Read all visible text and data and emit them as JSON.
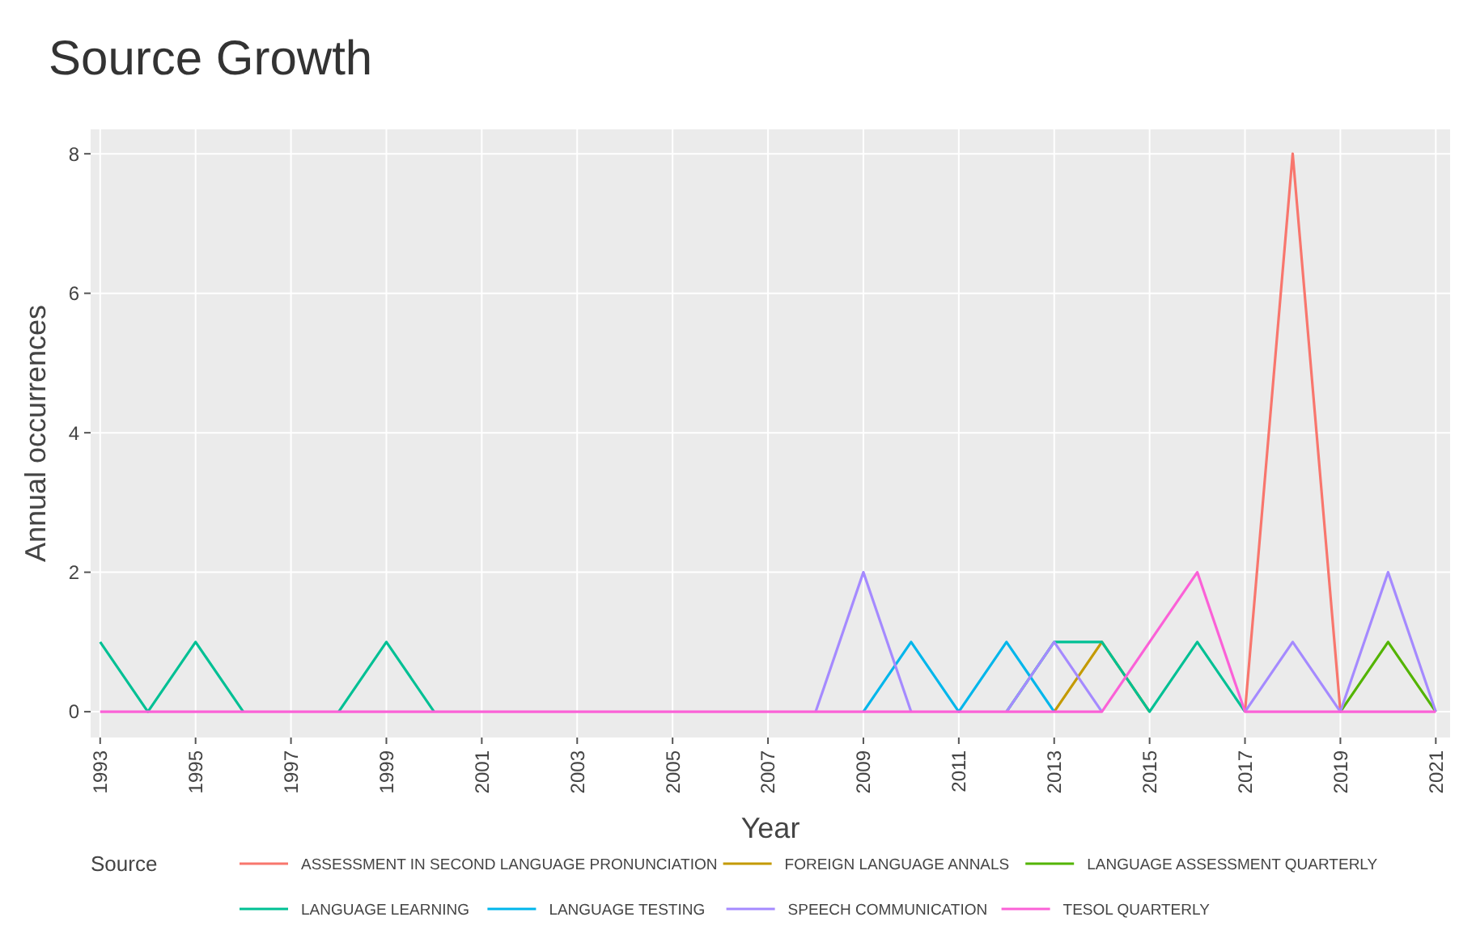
{
  "chart_data": {
    "type": "line",
    "title": "Source Growth",
    "xlabel": "Year",
    "ylabel": "Annual occurrences",
    "legend_title": "Source",
    "legend": "bottom",
    "grid": true,
    "x": [
      1993,
      1994,
      1995,
      1996,
      1997,
      1998,
      1999,
      2000,
      2001,
      2002,
      2003,
      2004,
      2005,
      2006,
      2007,
      2008,
      2009,
      2010,
      2011,
      2012,
      2013,
      2014,
      2015,
      2016,
      2017,
      2018,
      2019,
      2020,
      2021
    ],
    "xlim": [
      1992.8,
      2021.3
    ],
    "xticks": [
      {
        "value": 1993,
        "label": "1993"
      },
      {
        "value": 1995,
        "label": "1995"
      },
      {
        "value": 1997,
        "label": "1997"
      },
      {
        "value": 1999,
        "label": "1999"
      },
      {
        "value": 2001,
        "label": "2001"
      },
      {
        "value": 2003,
        "label": "2003"
      },
      {
        "value": 2005,
        "label": "2005"
      },
      {
        "value": 2007,
        "label": "2007"
      },
      {
        "value": 2009,
        "label": "2009"
      },
      {
        "value": 2011,
        "label": "2011"
      },
      {
        "value": 2013,
        "label": "2013"
      },
      {
        "value": 2015,
        "label": "2015"
      },
      {
        "value": 2017,
        "label": "2017"
      },
      {
        "value": 2019,
        "label": "2019"
      },
      {
        "value": 2021,
        "label": "2021"
      }
    ],
    "ylim": [
      -0.37,
      8.35
    ],
    "yticks": [
      0,
      2,
      4,
      6,
      8
    ],
    "series": [
      {
        "name": "ASSESSMENT IN SECOND LANGUAGE PRONUNCIATION",
        "color": "#f8766d",
        "values": [
          null,
          null,
          null,
          null,
          null,
          null,
          null,
          null,
          null,
          null,
          null,
          null,
          null,
          null,
          null,
          null,
          null,
          null,
          null,
          null,
          null,
          null,
          null,
          null,
          0,
          8,
          0,
          null,
          null
        ]
      },
      {
        "name": "FOREIGN LANGUAGE ANNALS",
        "color": "#c49a00",
        "values": [
          null,
          null,
          null,
          null,
          null,
          null,
          null,
          null,
          null,
          null,
          null,
          null,
          null,
          null,
          null,
          null,
          null,
          null,
          null,
          null,
          0,
          1,
          0,
          null,
          null,
          null,
          null,
          null,
          null
        ]
      },
      {
        "name": "LANGUAGE ASSESSMENT QUARTERLY",
        "color": "#53b400",
        "values": [
          null,
          null,
          null,
          null,
          null,
          null,
          null,
          null,
          null,
          null,
          null,
          null,
          null,
          null,
          null,
          null,
          null,
          null,
          null,
          null,
          null,
          null,
          null,
          null,
          null,
          null,
          0,
          1,
          0
        ]
      },
      {
        "name": "LANGUAGE LEARNING",
        "color": "#00c094",
        "values": [
          1,
          0,
          1,
          0,
          null,
          0,
          1,
          0,
          null,
          null,
          null,
          null,
          null,
          null,
          null,
          null,
          null,
          null,
          null,
          0,
          1,
          1,
          0,
          1,
          0,
          null,
          null,
          null,
          null
        ]
      },
      {
        "name": "LANGUAGE TESTING",
        "color": "#00b6eb",
        "values": [
          null,
          null,
          null,
          null,
          null,
          null,
          null,
          null,
          null,
          null,
          null,
          null,
          null,
          null,
          null,
          null,
          0,
          1,
          0,
          1,
          0,
          null,
          null,
          null,
          null,
          null,
          null,
          null,
          null
        ]
      },
      {
        "name": "SPEECH COMMUNICATION",
        "color": "#a58aff",
        "values": [
          null,
          null,
          null,
          null,
          null,
          null,
          null,
          null,
          null,
          null,
          null,
          null,
          null,
          null,
          null,
          0,
          2,
          0,
          null,
          0,
          1,
          0,
          null,
          null,
          0,
          1,
          0,
          2,
          0
        ]
      },
      {
        "name": "TESOL QUARTERLY",
        "color": "#fb61d7",
        "values": [
          0,
          0,
          0,
          0,
          0,
          0,
          0,
          0,
          0,
          0,
          0,
          0,
          0,
          0,
          0,
          0,
          0,
          0,
          0,
          0,
          0,
          0,
          1,
          2,
          0,
          0,
          0,
          0,
          0
        ]
      }
    ]
  }
}
